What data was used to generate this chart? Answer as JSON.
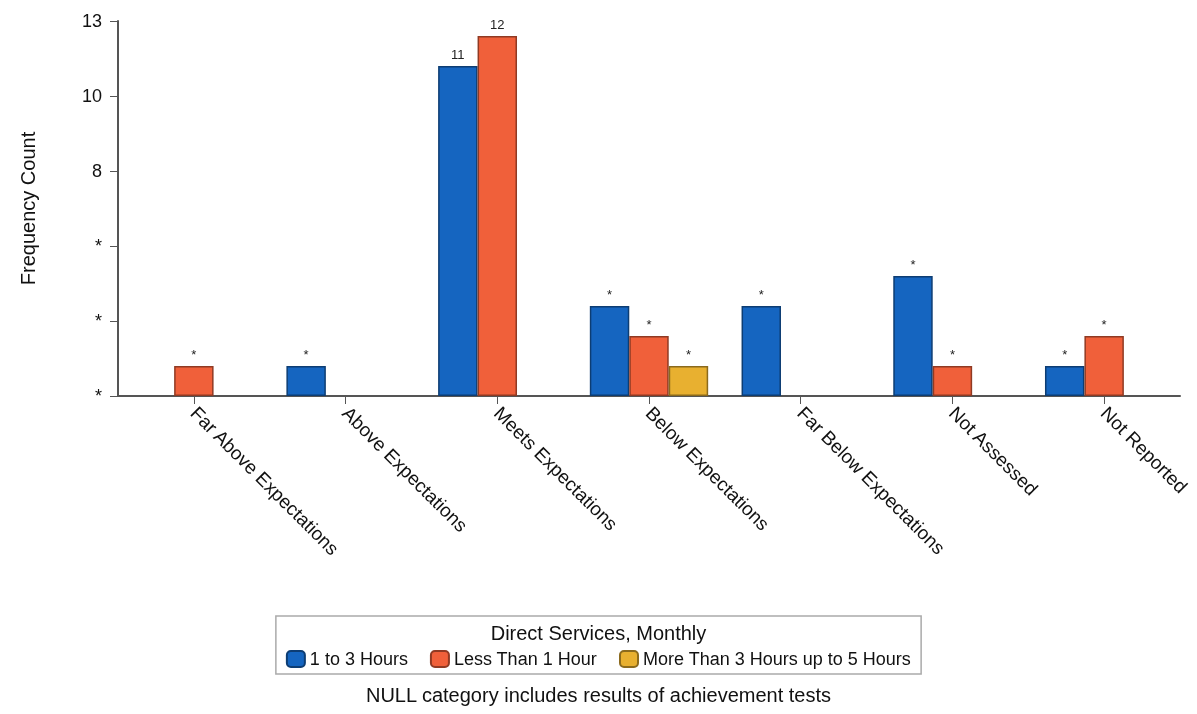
{
  "chart_data": {
    "type": "bar",
    "ylabel": "Frequency Count",
    "legend_title": "Direct Services, Monthly",
    "legend": "bottom",
    "grid": false,
    "categories": [
      "Far Above Expectations",
      "Above Expectations",
      "Meets Expectations",
      "Below Expectations",
      "Far Below Expectations",
      "Not Assessed",
      "Not Reported"
    ],
    "series": [
      {
        "name": "1 to 3 Hours",
        "color": "#1565c0",
        "values": [
          null,
          1,
          11,
          3,
          3,
          4,
          1
        ],
        "value_labels": [
          null,
          "*",
          "11",
          "*",
          "*",
          "*",
          "*"
        ]
      },
      {
        "name": "Less Than 1 Hour",
        "color": "#f0603a",
        "values": [
          1,
          null,
          12,
          2,
          null,
          1,
          2
        ],
        "value_labels": [
          "*",
          null,
          "12",
          "*",
          null,
          "*",
          "*"
        ]
      },
      {
        "name": "More Than 3 Hours up to 5 Hours",
        "color": "#e8b030",
        "values": [
          null,
          null,
          null,
          1,
          null,
          null,
          null
        ],
        "value_labels": [
          null,
          null,
          null,
          "*",
          null,
          null,
          null
        ]
      }
    ],
    "ylim": [
      0,
      12.5
    ],
    "yticks": [
      {
        "value": 0,
        "label": "*"
      },
      {
        "value": 2.5,
        "label": "*"
      },
      {
        "value": 5,
        "label": "*"
      },
      {
        "value": 7.5,
        "label": "8"
      },
      {
        "value": 10,
        "label": "10"
      },
      {
        "value": 12.5,
        "label": "13"
      }
    ],
    "annotations": [
      "NULL category includes results of achievement tests"
    ]
  }
}
